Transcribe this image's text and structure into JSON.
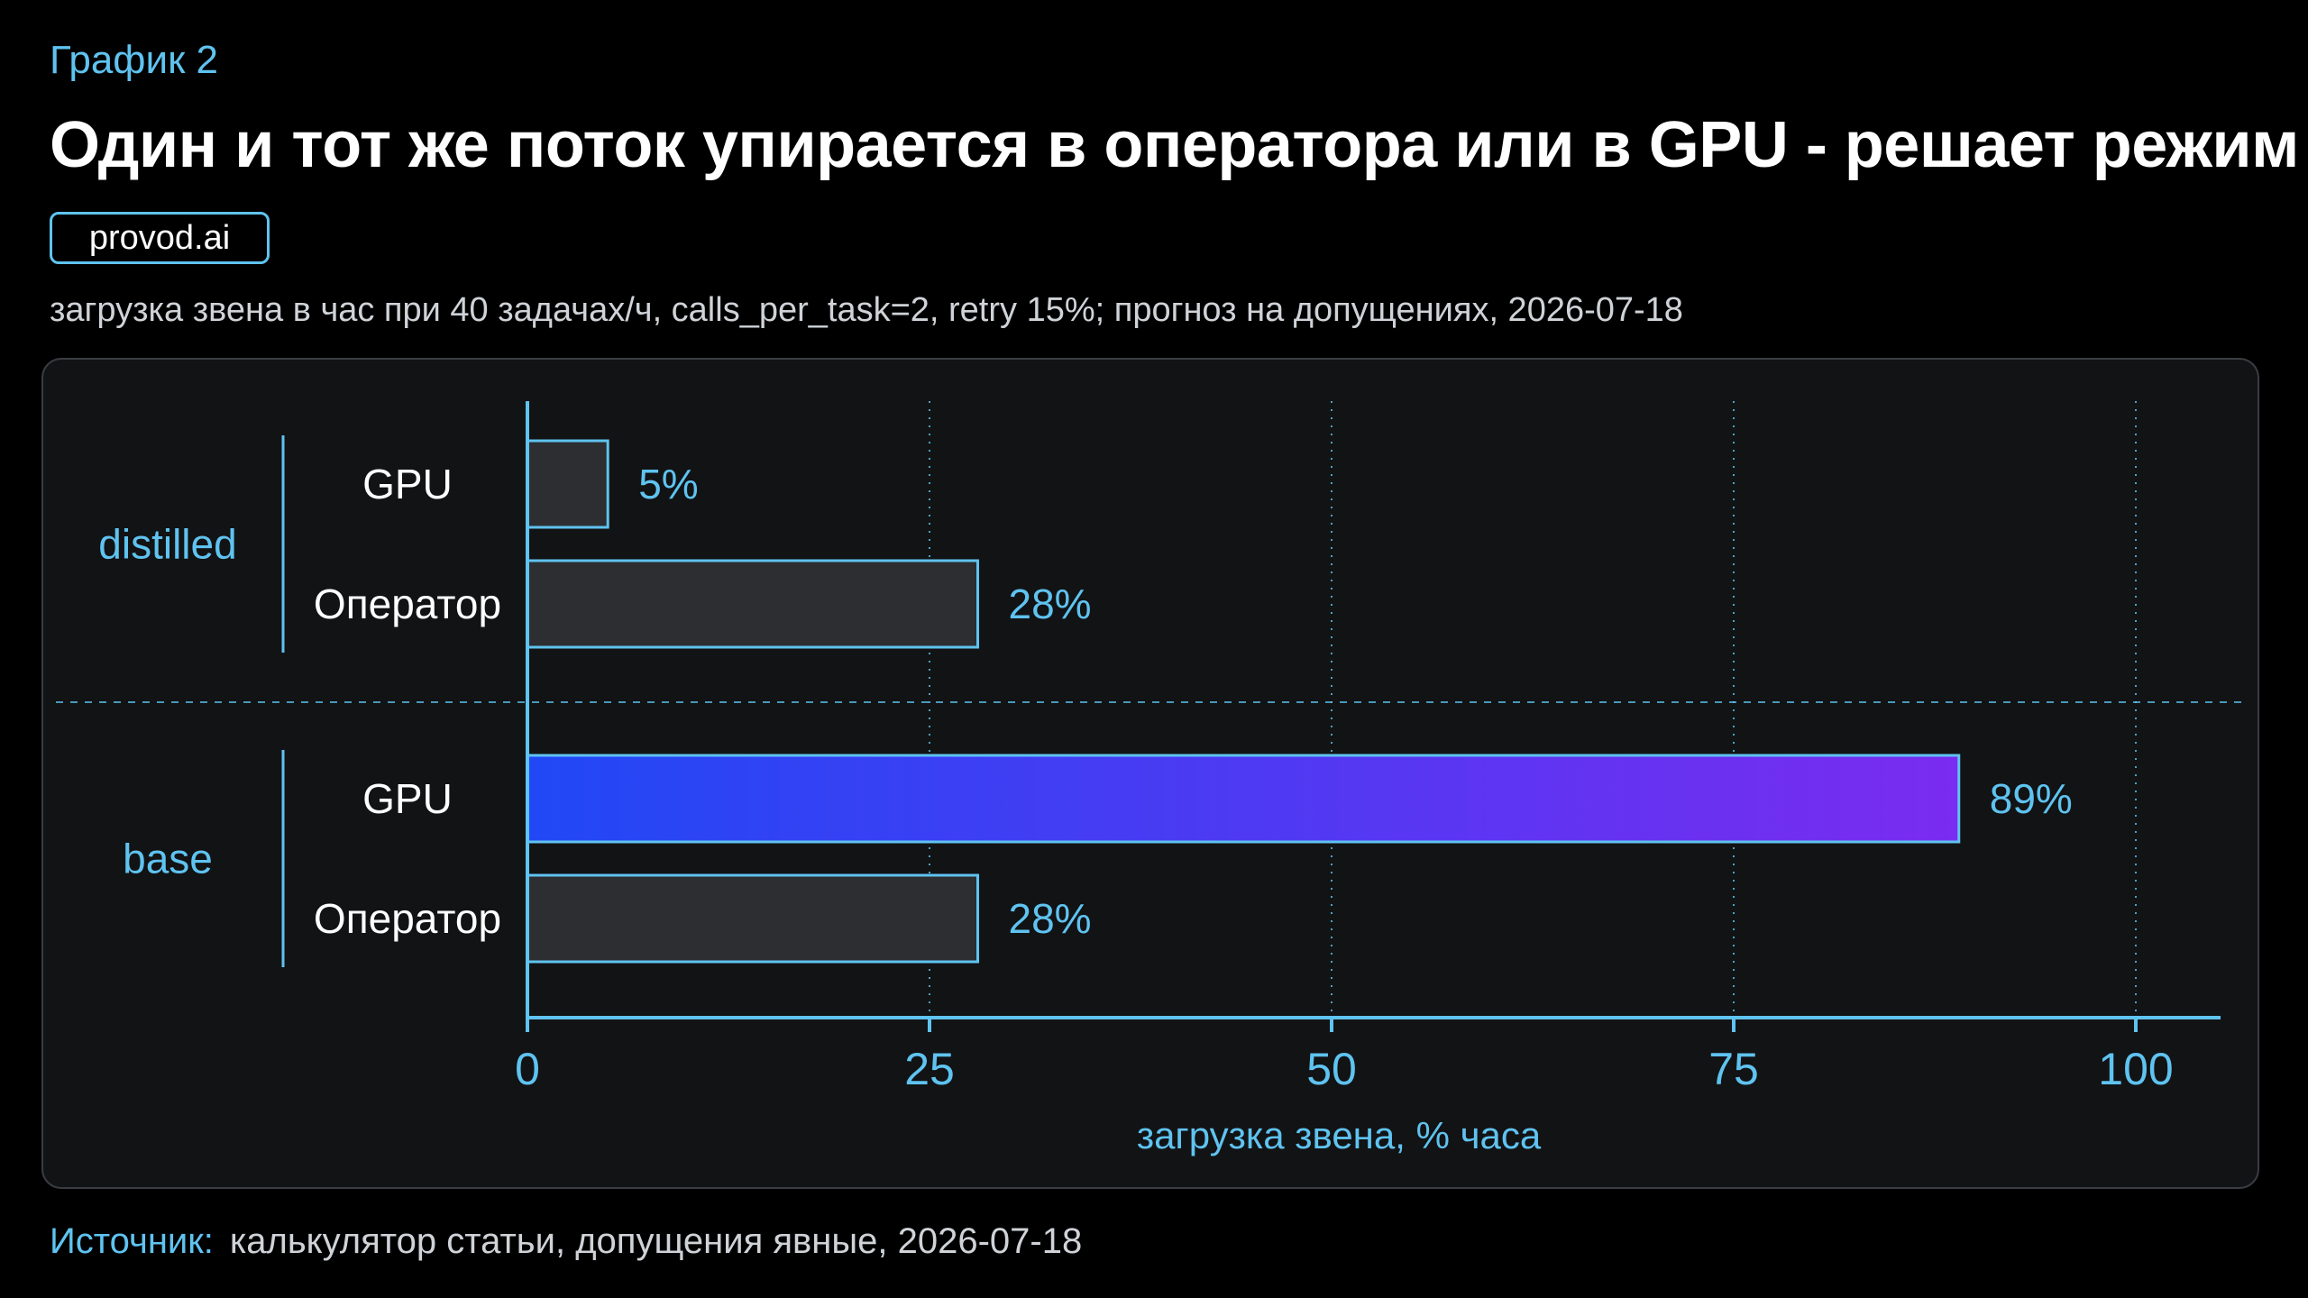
{
  "header": {
    "kicker": "График 2",
    "title": "Один и тот же поток упирается в оператора или в GPU - решает режим",
    "badge": "provod.ai",
    "subtitle": "загрузка звена в час при 40 задачах/ч, calls_per_task=2, retry 15%; прогноз на допущениях, 2026-07-18"
  },
  "footer": {
    "source_label": "Источник:",
    "source_text": "калькулятор статьи, допущения явные, 2026-07-18"
  },
  "colors": {
    "accent": "#5fc3f0",
    "bar_neutral": "#2d2e31",
    "bar_highlight_start": "#2148f5",
    "bar_highlight_end": "#7a2cf0",
    "panel_bg": "#121315"
  },
  "chart_data": {
    "type": "bar",
    "orientation": "horizontal",
    "xlabel": "загрузка звена, % часа",
    "xlim": [
      0,
      100
    ],
    "xticks": [
      0,
      25,
      50,
      75,
      100
    ],
    "grid": true,
    "groups": [
      {
        "name": "distilled",
        "bars": [
          {
            "label": "GPU",
            "value": 5,
            "value_label": "5%",
            "highlight": false
          },
          {
            "label": "Оператор",
            "value": 28,
            "value_label": "28%",
            "highlight": false
          }
        ]
      },
      {
        "name": "base",
        "bars": [
          {
            "label": "GPU",
            "value": 89,
            "value_label": "89%",
            "highlight": true
          },
          {
            "label": "Оператор",
            "value": 28,
            "value_label": "28%",
            "highlight": false
          }
        ]
      }
    ]
  }
}
